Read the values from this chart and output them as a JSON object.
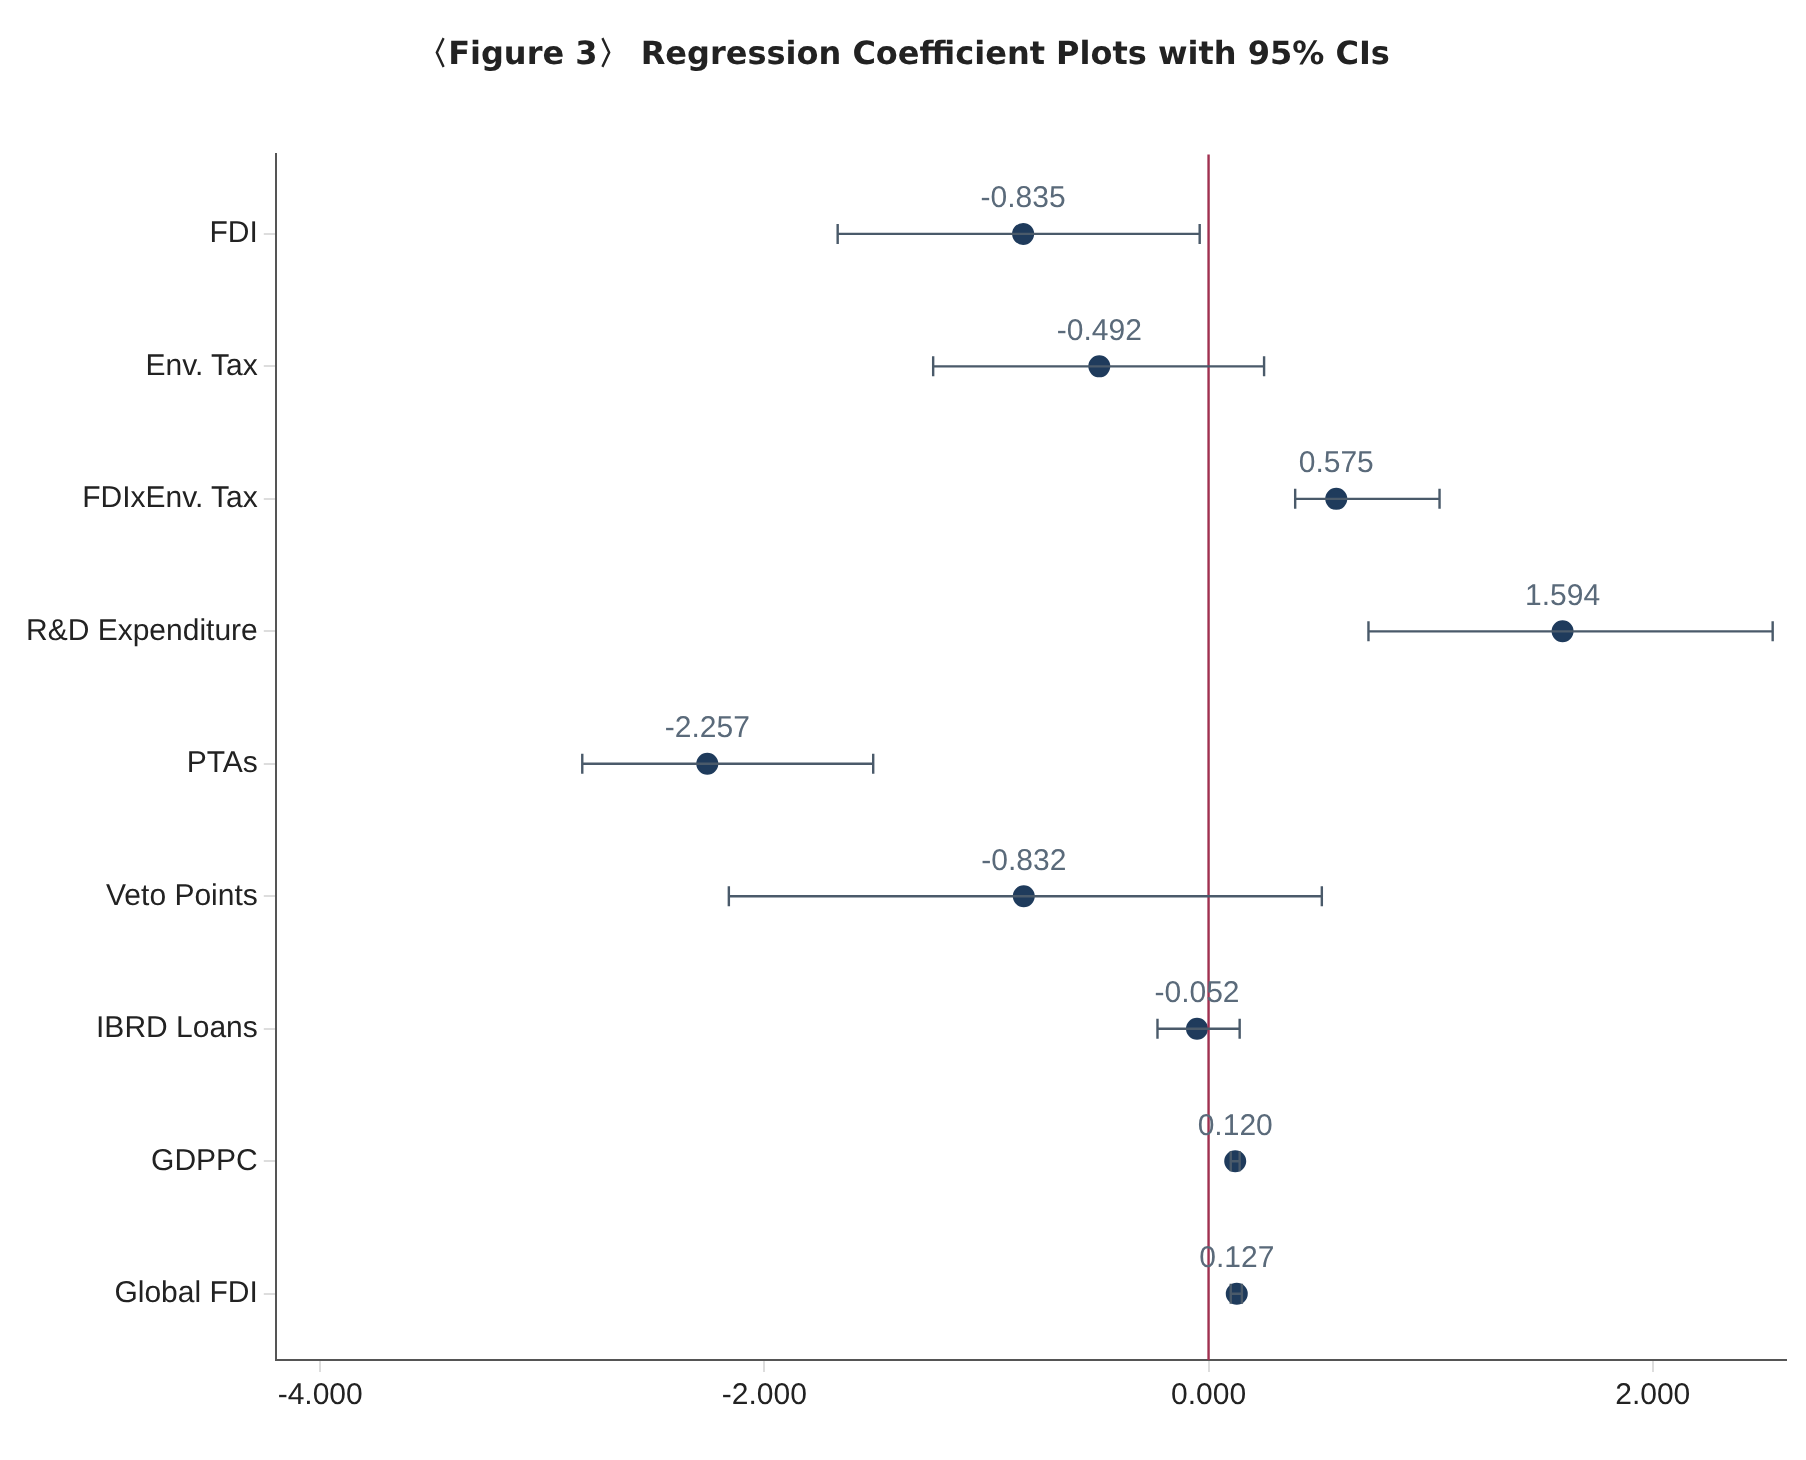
{
  "chart_data": {
    "type": "scatter",
    "orientation": "horizontal",
    "title": "〈Figure 3〉 Regression Coefficient Plots with 95% CIs",
    "categories": [
      "FDI",
      "Env. Tax",
      "FDIxEnv. Tax",
      "R&D Expenditure",
      "PTAs",
      "Veto Points",
      "IBRD Loans",
      "GDPPC",
      "Global FDI"
    ],
    "values": [
      -0.835,
      -0.492,
      0.575,
      1.594,
      -2.257,
      -0.832,
      -0.052,
      0.12,
      0.127
    ],
    "errors": [
      [
        -1.67,
        -0.04
      ],
      [
        -1.24,
        0.25
      ],
      [
        0.39,
        1.04
      ],
      [
        0.72,
        2.54
      ],
      [
        -2.82,
        -1.51
      ],
      [
        -2.16,
        0.51
      ],
      [
        -0.23,
        0.14
      ],
      [
        0.1,
        0.14
      ],
      [
        0.1,
        0.15
      ]
    ],
    "value_labels": [
      "-0.835",
      "-0.492",
      "0.575",
      "1.594",
      "-2.257",
      "-0.832",
      "-0.052",
      "0.120",
      "0.127"
    ],
    "color": "#1f3b5c",
    "marker": "circle",
    "grid": false,
    "legend": false,
    "xlim": [
      -4.2,
      2.6
    ],
    "xticks": [
      {
        "value": -4,
        "label": "-4.000"
      },
      {
        "value": -2,
        "label": "-2.000"
      },
      {
        "value": 0,
        "label": "0.000"
      },
      {
        "value": 2,
        "label": "2.000"
      }
    ],
    "ref_lines": [
      {
        "axis": "x",
        "value": 0,
        "label": null,
        "color": "#a03050"
      }
    ]
  }
}
